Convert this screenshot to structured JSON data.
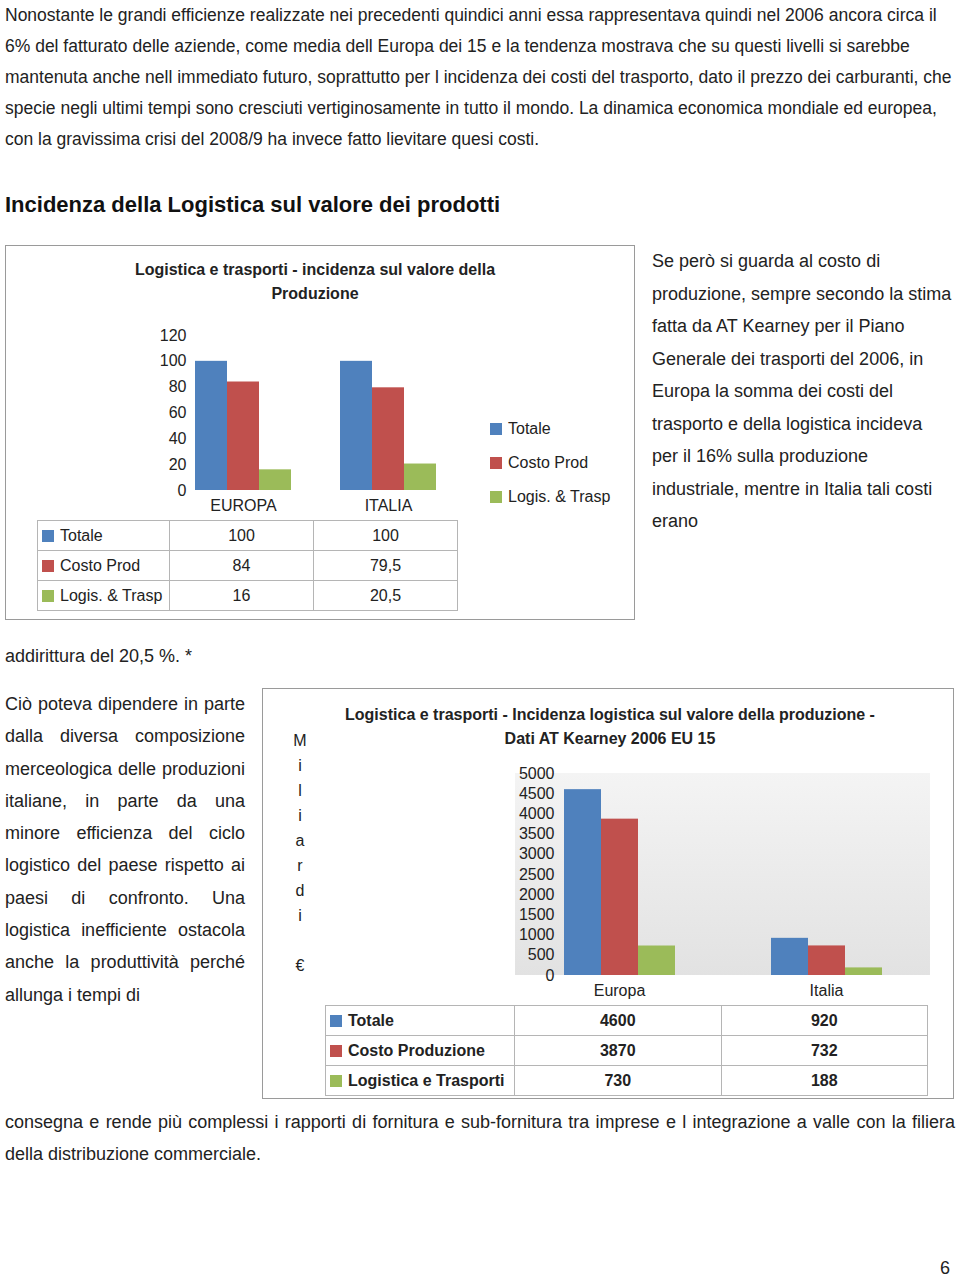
{
  "intro": "Nonostante le grandi efficienze realizzate nei precedenti quindici anni essa rappresentava quindi nel 2006 ancora circa il 6% del fatturato delle aziende, come media dell Europa dei 15 e la tendenza mostrava che su questi livelli si sarebbe mantenuta anche nell immediato futuro, soprattutto per l incidenza dei costi del trasporto, dato il prezzo dei carburanti, che specie negli ultimi tempi sono cresciuti vertiginosamente in tutto il mondo. La dinamica economica mondiale ed europea, con la gravissima crisi del 2008/9 ha invece fatto lievitare quesi costi.",
  "heading": "Incidenza della Logistica sul valore dei prodotti",
  "right_text": "Se però si guarda al costo di produzione, sempre secondo la stima fatta da AT Kearney per il Piano Generale dei trasporti del 2006, in Europa la somma dei costi del trasporto e della logistica incideva per il 16% sulla produzione industriale, mentre in Italia tali costi erano",
  "right_text_continued": "addirittura del 20,5 %. *",
  "left_text": "Ciò poteva dipendere in parte dalla diversa composizione merceologica delle produzioni italiane, in parte da una minore efficienza del ciclo logistico del paese rispetto ai paesi di confronto. Una logistica inefficiente ostacola anche la produttività perché allunga i tempi di",
  "left_text_continued": "consegna e rende più complessi i rapporti di fornitura e sub-fornitura tra imprese e l integrazione a valle con la filiera della distribuzione commerciale.",
  "page_number": "6",
  "chart_data": [
    {
      "type": "bar",
      "title": "Logistica e trasporti - incidenza sul valore della Produzione",
      "categories": [
        "EUROPA",
        "ITALIA"
      ],
      "series": [
        {
          "name": "Totale",
          "color": "#4f81bd",
          "values": [
            100,
            100
          ]
        },
        {
          "name": "Costo Prod",
          "color": "#c0504d",
          "values": [
            84,
            79.5
          ],
          "value_labels": [
            "84",
            "79,5"
          ]
        },
        {
          "name": "Logis. & Trasp",
          "color": "#9bbb59",
          "values": [
            16,
            20.5
          ],
          "value_labels": [
            "16",
            "20,5"
          ]
        }
      ],
      "ylim": [
        0,
        120
      ],
      "yticks": [
        0,
        20,
        40,
        60,
        80,
        100,
        120
      ],
      "grid": false,
      "legend": "right",
      "data_labels": true
    },
    {
      "type": "bar",
      "title": "Logistica e trasporti - Incidenza logistica sul valore della produzione - Dati AT Kearney 2006 EU 15",
      "ylabel": "Miliardi €",
      "categories": [
        "Europa",
        "Italia"
      ],
      "series": [
        {
          "name": "Totale",
          "color": "#4f81bd",
          "values": [
            4600,
            920
          ]
        },
        {
          "name": "Costo Produzione",
          "color": "#c0504d",
          "values": [
            3870,
            732
          ]
        },
        {
          "name": "Logistica e Trasporti",
          "color": "#9bbb59",
          "values": [
            730,
            188
          ]
        }
      ],
      "ylim": [
        0,
        5000
      ],
      "yticks": [
        0,
        500,
        1000,
        1500,
        2000,
        2500,
        3000,
        3500,
        4000,
        4500,
        5000
      ],
      "grid": false,
      "data_labels": true
    }
  ]
}
